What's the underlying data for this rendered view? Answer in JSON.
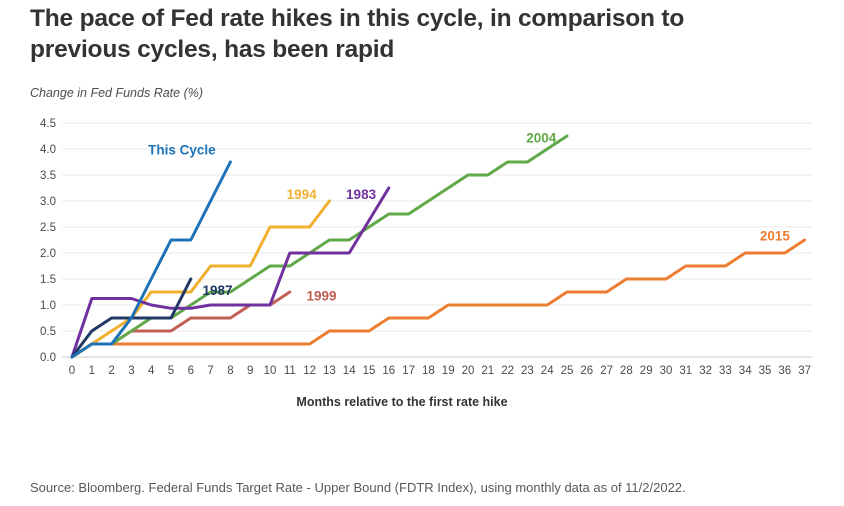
{
  "header": {
    "title": "The pace of Fed rate hikes in this cycle, in comparison to previous cycles, has been rapid",
    "subtitle": "Change in Fed Funds Rate (%)"
  },
  "footer": {
    "source": "Source: Bloomberg. Federal Funds Target Rate - Upper Bound (FDTR Index), using monthly data as of 11/2/2022."
  },
  "chart_data": {
    "type": "line",
    "title": "The pace of Fed rate hikes in this cycle, in comparison to previous cycles, has been rapid",
    "subtitle": "Change in Fed Funds Rate (%)",
    "xlabel": "Months relative to the first rate hike",
    "ylabel": "Change in Fed Funds Rate (%)",
    "xlim": [
      0,
      37.6
    ],
    "ylim": [
      0,
      4.5
    ],
    "x_ticks": [
      0,
      1,
      2,
      3,
      4,
      5,
      6,
      7,
      8,
      9,
      10,
      11,
      12,
      13,
      14,
      15,
      16,
      17,
      18,
      19,
      20,
      21,
      22,
      23,
      24,
      25,
      26,
      27,
      28,
      29,
      30,
      31,
      32,
      33,
      34,
      35,
      36,
      37
    ],
    "y_ticks": [
      0.0,
      0.5,
      1.0,
      1.5,
      2.0,
      2.5,
      3.0,
      3.5,
      4.0,
      4.5
    ],
    "grid": true,
    "legend": "inline-labels",
    "colors": {
      "grid": "#e8e8e8",
      "baseline": "#cccccc",
      "tick_text": "#4a4a4a",
      "axis_title": "#333333"
    },
    "series": [
      {
        "name": "2015",
        "color": "#ed7d31",
        "values": [
          0,
          0.25,
          0.25,
          0.25,
          0.25,
          0.25,
          0.25,
          0.25,
          0.25,
          0.25,
          0.25,
          0.25,
          0.25,
          0.5,
          0.5,
          0.5,
          0.75,
          0.75,
          0.75,
          1.0,
          1.0,
          1.0,
          1.0,
          1.0,
          1.0,
          1.25,
          1.25,
          1.25,
          1.5,
          1.5,
          1.5,
          1.75,
          1.75,
          1.75,
          2.0,
          2.0,
          2.0,
          2.25
        ],
        "label": {
          "x": 35.5,
          "y": 2.32
        }
      },
      {
        "name": "1999",
        "color": "#c05f52",
        "values": [
          0,
          0.25,
          0.25,
          0.5,
          0.5,
          0.5,
          0.75,
          0.75,
          0.75,
          1.0,
          1.0,
          1.25
        ],
        "label": {
          "x": 12.6,
          "y": 1.16
        }
      },
      {
        "name": "2004",
        "color": "#61a849",
        "values": [
          0,
          0.25,
          0.25,
          0.5,
          0.75,
          0.75,
          1.0,
          1.25,
          1.25,
          1.5,
          1.75,
          1.75,
          2.0,
          2.25,
          2.25,
          2.5,
          2.75,
          2.75,
          3.0,
          3.25,
          3.5,
          3.5,
          3.75,
          3.75,
          4.0,
          4.25
        ],
        "label": {
          "x": 23.7,
          "y": 4.2
        }
      },
      {
        "name": "1994",
        "color": "#f1af2f",
        "values": [
          0,
          0.25,
          0.5,
          0.75,
          1.25,
          1.25,
          1.25,
          1.75,
          1.75,
          1.75,
          2.5,
          2.5,
          2.5,
          3.0
        ],
        "label": {
          "x": 11.6,
          "y": 3.12
        }
      },
      {
        "name": "1983",
        "color": "#7030a0",
        "values": [
          0,
          1.125,
          1.125,
          1.125,
          1.0,
          0.9375,
          0.9375,
          1.0,
          1.0,
          1.0,
          1.0,
          2.0,
          2.0,
          2.0,
          2.0,
          2.625,
          3.25
        ],
        "label": {
          "x": 14.6,
          "y": 3.12
        }
      },
      {
        "name": "1987",
        "color": "#203864",
        "values": [
          0,
          0.5,
          0.75,
          0.75,
          0.75,
          0.75,
          1.5
        ],
        "label": {
          "x": 7.35,
          "y": 1.27
        }
      },
      {
        "name": "This Cycle",
        "color": "#1d72b8",
        "values": [
          0,
          0.25,
          0.25,
          0.75,
          1.5,
          2.25,
          2.25,
          3.0,
          3.75
        ],
        "label": {
          "x": 5.55,
          "y": 3.97
        }
      }
    ]
  }
}
